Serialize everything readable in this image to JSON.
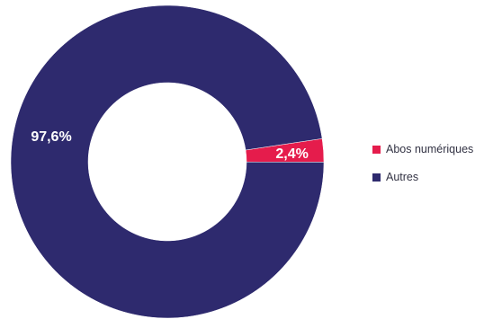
{
  "chart_data": {
    "type": "pie",
    "donut": true,
    "categories": [
      "Abos numériques",
      "Autres"
    ],
    "values": [
      2.4,
      97.6
    ],
    "value_labels": [
      "2,4%",
      "97,6%"
    ],
    "colors": [
      "#e51c4c",
      "#2e2a6e"
    ],
    "legend_position": "right",
    "title": ""
  }
}
